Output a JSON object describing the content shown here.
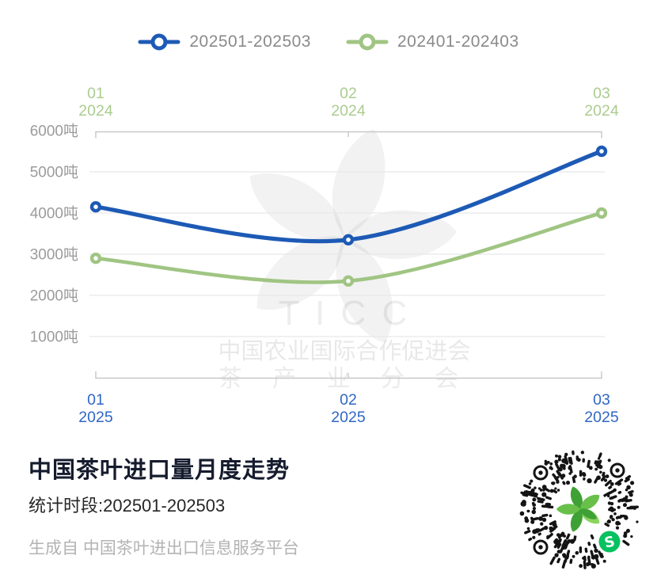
{
  "legend": {
    "items": [
      {
        "label": "202501-202503",
        "color": "#1d5ab5"
      },
      {
        "label": "202401-202403",
        "color": "#a0c583"
      }
    ]
  },
  "chart_data": {
    "type": "line",
    "title": "中国茶叶进口量月度走势",
    "unit": "吨",
    "ylim": [
      0,
      6000
    ],
    "y_tick_step": 1000,
    "y_tick_labels": [
      "1000吨",
      "2000吨",
      "3000吨",
      "4000吨",
      "5000吨",
      "6000吨"
    ],
    "grid": true,
    "legend_position": "top",
    "x_top": [
      {
        "month": "01",
        "year": "2024"
      },
      {
        "month": "02",
        "year": "2024"
      },
      {
        "month": "03",
        "year": "2024"
      }
    ],
    "x_bottom": [
      {
        "month": "01",
        "year": "2025"
      },
      {
        "month": "02",
        "year": "2025"
      },
      {
        "month": "03",
        "year": "2025"
      }
    ],
    "series": [
      {
        "name": "202501-202503",
        "axis": "bottom",
        "color": "#1d5ab5",
        "values": [
          4150,
          3350,
          5500
        ]
      },
      {
        "name": "202401-202403",
        "axis": "top",
        "color": "#a0c583",
        "values": [
          2900,
          2350,
          4000
        ]
      }
    ]
  },
  "watermark": {
    "acronym": "T I C C",
    "org": "中国农业国际合作促进会",
    "branch": "茶 产 业 分 会",
    "logo": "tea-leaf-pinwheel"
  },
  "info": {
    "title": "中国茶叶进口量月度走势",
    "subtitle": "统计时段:202501-202503",
    "footer": "生成自 中国茶叶进出口信息服务平台"
  },
  "qr": {
    "kind": "wechat-mini-program-code",
    "center_logo": "tea-leaf-pinwheel"
  },
  "colors": {
    "top_label": "#abcc90",
    "bottom_label": "#2f67c5",
    "y_label": "#9b9b9b",
    "axis_line": "#c8c8c8",
    "grid_line": "#e8e8ea",
    "legend_text": "#8a8a8a",
    "title": "#161c2e",
    "subtitle": "#262626",
    "footer": "#b3b3b3",
    "qr_dot": "#141414",
    "wechat_green": "#07c160",
    "logo_greens": [
      "#3fa135",
      "#68c04a",
      "#8bd45e"
    ]
  }
}
